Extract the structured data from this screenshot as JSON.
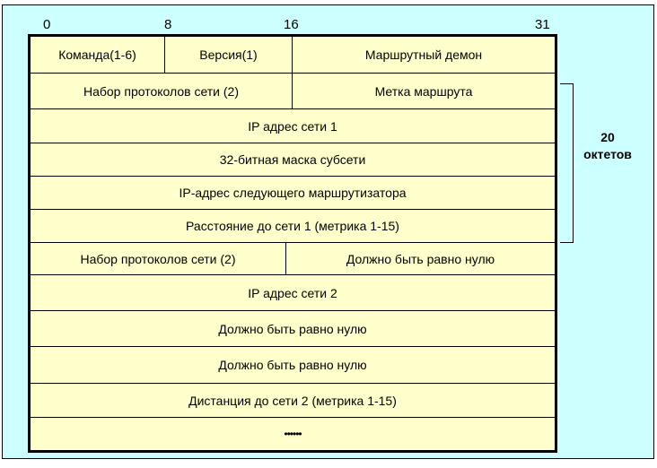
{
  "bit_ticks": [
    "0",
    "8",
    "16",
    "31"
  ],
  "rows": [
    {
      "cells": [
        "Команда(1-6)",
        "Версия(1)",
        "Маршрутный демон"
      ]
    },
    {
      "cells": [
        "Набор протоколов  сети (2)",
        "Метка маршрута"
      ]
    },
    {
      "cells": [
        "IP адрес сети 1"
      ]
    },
    {
      "cells": [
        "32-битная маска субсети"
      ]
    },
    {
      "cells": [
        "IP-адрес следующего маршрутизатора"
      ]
    },
    {
      "cells": [
        "Расстояние до сети 1 (метрика 1-15)"
      ]
    },
    {
      "cells": [
        "Набор протоколов сети (2)",
        "Должно быть равно нулю"
      ]
    },
    {
      "cells": [
        "IP адрес сети 2"
      ]
    },
    {
      "cells": [
        "Должно быть равно нулю"
      ]
    },
    {
      "cells": [
        "Должно быть равно нулю"
      ]
    },
    {
      "cells": [
        "Дистанция до сети 2 (метрика 1-15)"
      ]
    },
    {
      "cells": [
        "••••••"
      ]
    }
  ],
  "bracket_label": {
    "count": "20",
    "unit": "октетов"
  },
  "colors": {
    "background": "#ccffff",
    "fill": "#ffffcc"
  }
}
